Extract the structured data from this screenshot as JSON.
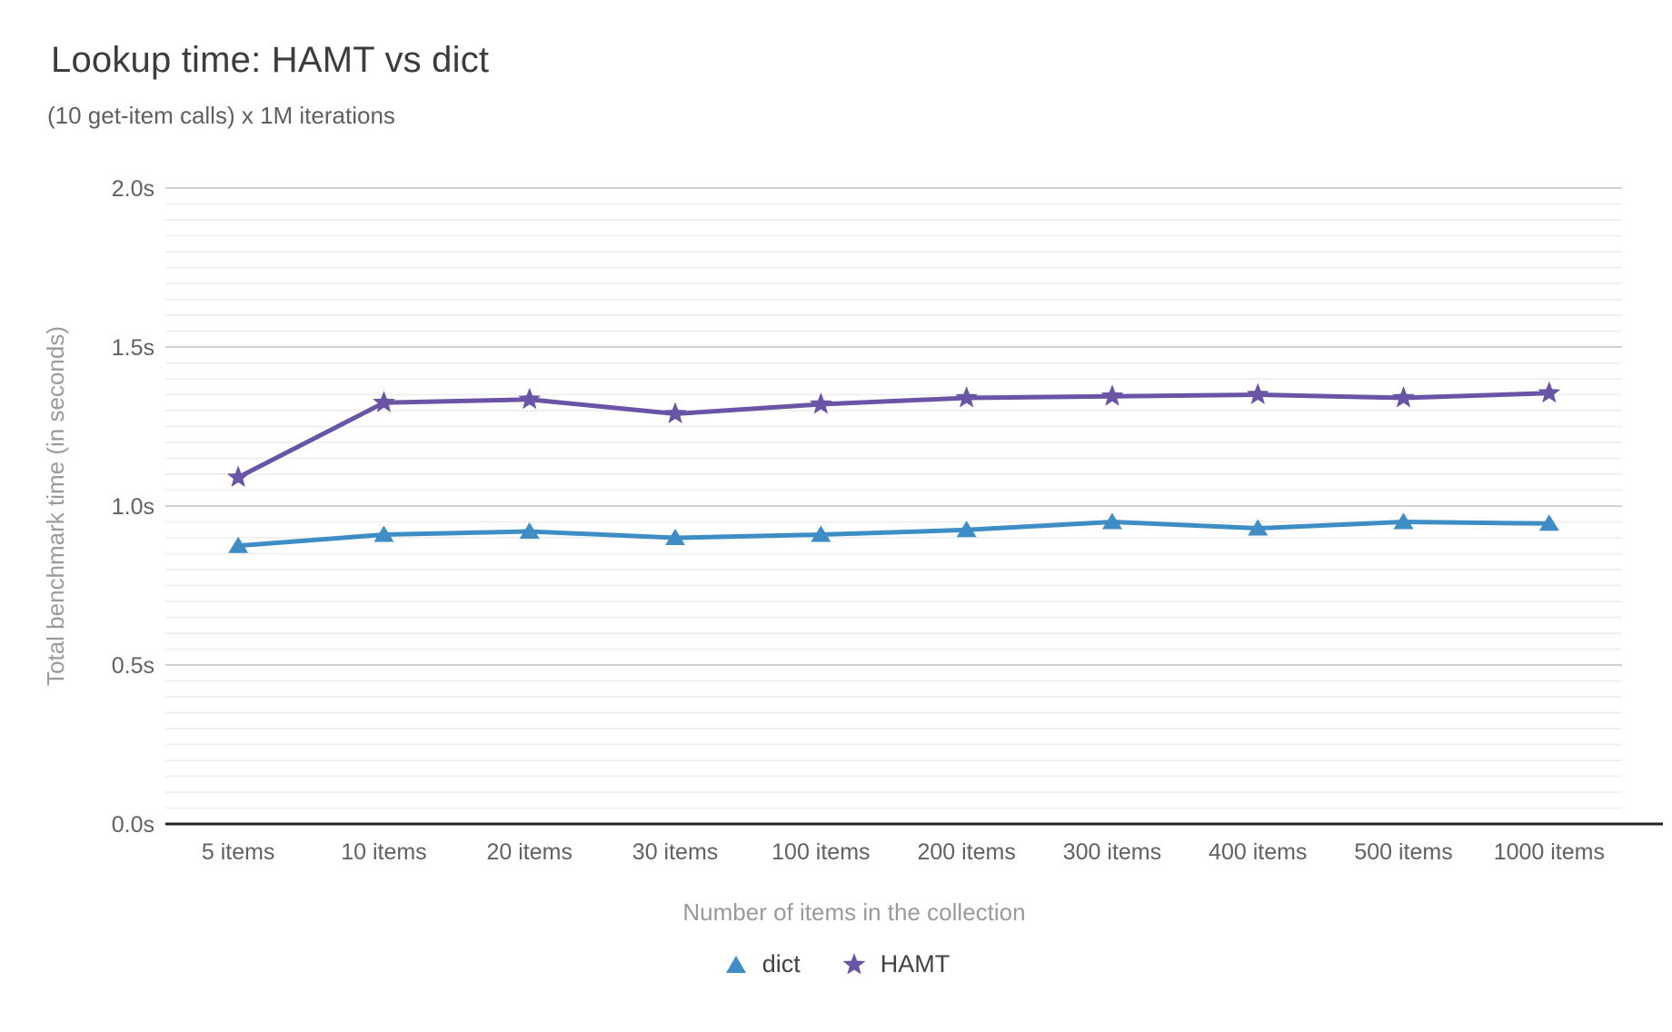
{
  "page": {
    "background": "#ffffff"
  },
  "chart_data": {
    "type": "line",
    "title": "Lookup time: HAMT vs dict",
    "subtitle": "(10 get-item calls) x 1M iterations",
    "xlabel": "Number of items in the collection",
    "ylabel": "Total benchmark time (in seconds)",
    "categories": [
      "5 items",
      "10 items",
      "20 items",
      "30 items",
      "100 items",
      "200 items",
      "300 items",
      "400 items",
      "500 items",
      "1000 items"
    ],
    "series": [
      {
        "name": "dict",
        "marker": "triangle",
        "color": "#3e8dc5",
        "values": [
          0.875,
          0.91,
          0.92,
          0.9,
          0.91,
          0.925,
          0.95,
          0.93,
          0.95,
          0.945
        ]
      },
      {
        "name": "HAMT",
        "marker": "star",
        "color": "#6a54a5",
        "values": [
          1.09,
          1.325,
          1.335,
          1.29,
          1.32,
          1.34,
          1.345,
          1.35,
          1.34,
          1.355
        ]
      }
    ],
    "ylim": [
      0,
      2.0
    ],
    "ytick_step": 0.5,
    "yminor_step": 0.05,
    "ytick_labels": [
      "0.0s",
      "0.5s",
      "1.0s",
      "1.5s",
      "2.0s"
    ],
    "grid": true,
    "legend_position": "bottom",
    "style": {
      "title_color": "#3c3c3c",
      "subtitle_color": "#5f5f5f",
      "tick_color": "#616161",
      "axis_title_color": "#9a9a9a",
      "legend_text_color": "#424242",
      "minor_grid_color": "#f0f0f0",
      "major_grid_color": "#d2d2d2",
      "axis_line_color": "#212121"
    }
  }
}
